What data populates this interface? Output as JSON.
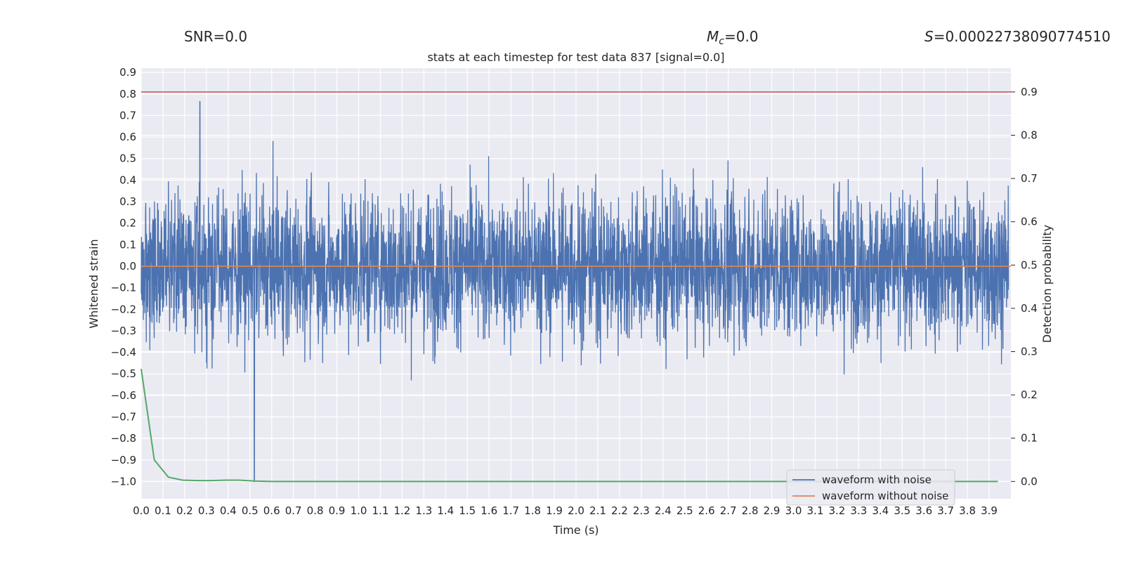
{
  "header": {
    "snr": "SNR=0.0",
    "mc_symbol": "M",
    "mc_sub": "c",
    "mc_value": "=0.0",
    "s_symbol": "S",
    "s_value": "=0.00022738090774510"
  },
  "chart_data": {
    "type": "line",
    "title": "stats at each timestep for test data 837 [signal=0.0]",
    "xlabel": "Time (s)",
    "ylabel_left": "Whitened strain",
    "ylabel_right": "Detection probability",
    "xlim": [
      0.0,
      4.0
    ],
    "ylim_left": [
      -1.08,
      0.92
    ],
    "ylim_right": [
      -0.04,
      0.955
    ],
    "xticks": [
      "0.0",
      "0.1",
      "0.2",
      "0.3",
      "0.4",
      "0.5",
      "0.6",
      "0.7",
      "0.8",
      "0.9",
      "1.0",
      "1.1",
      "1.2",
      "1.3",
      "1.4",
      "1.5",
      "1.6",
      "1.7",
      "1.8",
      "1.9",
      "2.0",
      "2.1",
      "2.2",
      "2.3",
      "2.4",
      "2.5",
      "2.6",
      "2.7",
      "2.8",
      "2.9",
      "3.0",
      "3.1",
      "3.2",
      "3.3",
      "3.4",
      "3.5",
      "3.6",
      "3.7",
      "3.8",
      "3.9"
    ],
    "yticks_left": [
      "0.9",
      "0.8",
      "0.7",
      "0.6",
      "0.5",
      "0.4",
      "0.3",
      "0.2",
      "0.1",
      "0.0",
      "−0.1",
      "−0.2",
      "−0.3",
      "−0.4",
      "−0.5",
      "−0.6",
      "−0.7",
      "−0.8",
      "−0.9",
      "−1.0"
    ],
    "yticks_right": [
      "0.9",
      "0.8",
      "0.7",
      "0.6",
      "0.5",
      "0.4",
      "0.3",
      "0.2",
      "0.1",
      "0.0"
    ],
    "threshold": 0.9,
    "series": [
      {
        "name": "waveform with noise",
        "color": "#4c72b0",
        "axis": "left",
        "note": "dense noisy strain trace, roughly ±0.4 typical amplitude",
        "extremes": {
          "max": 0.82,
          "max_t": 0.27,
          "min": -1.0,
          "min_t": 0.52
        }
      },
      {
        "name": "waveform without noise",
        "color": "#dd8452",
        "axis": "left",
        "value": 0.0
      },
      {
        "name": "detection probability",
        "color": "#55a868",
        "axis": "right",
        "x": [
          0.0,
          0.06,
          0.125,
          0.19,
          0.26,
          0.32,
          0.39,
          0.45,
          0.52,
          0.6,
          0.8,
          1.0,
          2.0,
          3.0,
          3.94
        ],
        "values": [
          0.26,
          0.05,
          0.01,
          0.003,
          0.002,
          0.002,
          0.003,
          0.003,
          0.001,
          0.0,
          0.0,
          0.0,
          0.0,
          0.0,
          0.0
        ]
      },
      {
        "name": "threshold",
        "color": "#c44e52",
        "axis": "right",
        "value": 0.9
      }
    ],
    "legend": {
      "position": "bottom-right",
      "entries": [
        {
          "label": "waveform with noise",
          "color": "#4c72b0"
        },
        {
          "label": "waveform without noise",
          "color": "#dd8452"
        }
      ]
    }
  }
}
